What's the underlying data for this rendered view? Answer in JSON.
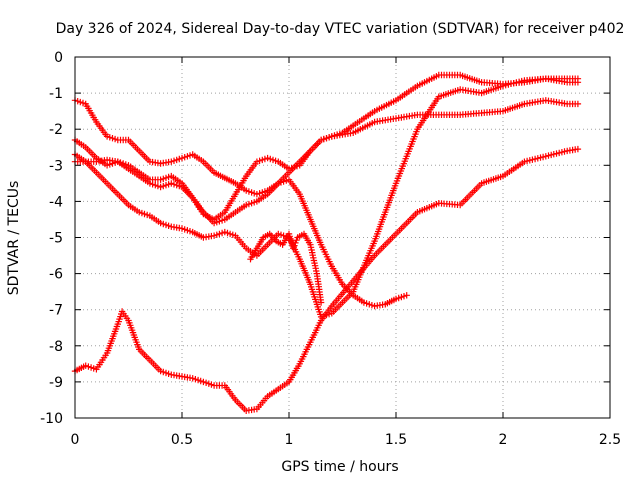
{
  "chart_data": {
    "type": "scatter",
    "title": "Day 326 of 2024, Sidereal Day-to-day VTEC variation (SDTVAR) for receiver p402",
    "xlabel": "GPS time / hours",
    "ylabel": "SDTVAR / TECUs",
    "xlim": [
      0,
      2.5
    ],
    "ylim": [
      -10,
      0
    ],
    "xticks": [
      0,
      0.5,
      1,
      1.5,
      2,
      2.5
    ],
    "xtick_labels": [
      "0",
      "0.5",
      "1",
      "1.5",
      "2",
      "2.5"
    ],
    "yticks": [
      0,
      -1,
      -2,
      -3,
      -4,
      -5,
      -6,
      -7,
      -8,
      -9,
      -10
    ],
    "ytick_labels": [
      "0",
      "-1",
      "-2",
      "-3",
      "-4",
      "-5",
      "-6",
      "-7",
      "-8",
      "-9",
      "-10"
    ],
    "grid": true,
    "marker": "+",
    "color": "#ff0000",
    "series": [
      {
        "name": "track-1",
        "x": [
          0,
          0.05,
          0.1,
          0.15,
          0.2,
          0.25,
          0.3,
          0.35,
          0.4,
          0.45,
          0.5,
          0.55,
          0.6,
          0.65,
          0.7,
          0.75,
          0.8,
          0.85,
          0.9,
          0.95,
          1.0,
          1.05,
          1.1,
          1.15,
          1.2,
          1.25,
          1.3,
          1.35,
          1.4,
          1.45,
          1.5,
          1.55
        ],
        "y": [
          -1.2,
          -1.3,
          -1.8,
          -2.2,
          -2.3,
          -2.3,
          -2.6,
          -2.9,
          -2.95,
          -2.9,
          -2.8,
          -2.7,
          -2.9,
          -3.2,
          -3.35,
          -3.5,
          -3.7,
          -3.8,
          -3.7,
          -3.5,
          -3.4,
          -3.8,
          -4.5,
          -5.2,
          -5.8,
          -6.3,
          -6.6,
          -6.8,
          -6.9,
          -6.85,
          -6.7,
          -6.6
        ]
      },
      {
        "name": "track-2",
        "x": [
          0,
          0.05,
          0.1,
          0.15,
          0.2,
          0.25,
          0.3,
          0.35,
          0.4,
          0.45,
          0.5,
          0.55,
          0.6,
          0.65,
          0.7,
          0.75,
          0.8,
          0.85,
          0.9,
          0.95,
          1.0,
          1.05,
          1.1,
          1.15,
          1.2,
          1.3,
          1.4,
          1.5,
          1.6,
          1.7,
          1.8,
          1.9,
          2.0,
          2.1,
          2.2,
          2.3,
          2.35
        ],
        "y": [
          -2.3,
          -2.5,
          -2.8,
          -3.0,
          -2.9,
          -3.1,
          -3.3,
          -3.5,
          -3.6,
          -3.5,
          -3.6,
          -3.9,
          -4.3,
          -4.6,
          -4.5,
          -4.3,
          -4.1,
          -4.0,
          -3.8,
          -3.5,
          -3.2,
          -2.9,
          -2.6,
          -2.3,
          -2.2,
          -2.1,
          -1.8,
          -1.7,
          -1.6,
          -1.6,
          -1.6,
          -1.55,
          -1.5,
          -1.3,
          -1.2,
          -1.3,
          -1.3
        ]
      },
      {
        "name": "track-3",
        "x": [
          0,
          0.05,
          0.1,
          0.15,
          0.2,
          0.25,
          0.3,
          0.35,
          0.4,
          0.45,
          0.5,
          0.55,
          0.6,
          0.65,
          0.7,
          0.75,
          0.8,
          0.85,
          0.9,
          0.95,
          1.0,
          1.05,
          1.1,
          1.15,
          1.2,
          1.25,
          1.3,
          1.35,
          1.4,
          1.5,
          1.6,
          1.7,
          1.8,
          1.9,
          2.0,
          2.1,
          2.2,
          2.3,
          2.35
        ],
        "y": [
          -2.9,
          -2.9,
          -2.9,
          -2.85,
          -2.9,
          -3.0,
          -3.2,
          -3.4,
          -3.4,
          -3.3,
          -3.5,
          -3.9,
          -4.35,
          -4.5,
          -4.3,
          -3.8,
          -3.3,
          -2.9,
          -2.8,
          -2.9,
          -3.1,
          -3.0,
          -2.6,
          -2.3,
          -2.2,
          -2.1,
          -1.9,
          -1.7,
          -1.5,
          -1.2,
          -0.8,
          -0.5,
          -0.5,
          -0.7,
          -0.75,
          -0.7,
          -0.6,
          -0.6,
          -0.6
        ]
      },
      {
        "name": "track-4",
        "x": [
          0,
          0.05,
          0.1,
          0.15,
          0.2,
          0.25,
          0.3,
          0.35,
          0.4,
          0.45,
          0.5,
          0.55,
          0.6,
          0.65,
          0.7,
          0.75,
          0.8,
          0.85,
          0.9,
          0.95,
          1.0,
          1.05,
          1.1,
          1.15,
          1.2,
          1.3,
          1.4,
          1.5,
          1.6,
          1.7,
          1.8,
          1.9,
          2.0,
          2.1,
          2.2,
          2.3,
          2.35
        ],
        "y": [
          -2.7,
          -2.9,
          -3.2,
          -3.5,
          -3.8,
          -4.1,
          -4.3,
          -4.4,
          -4.6,
          -4.7,
          -4.75,
          -4.85,
          -5.0,
          -4.95,
          -4.85,
          -4.95,
          -5.3,
          -5.5,
          -5.2,
          -4.9,
          -5.0,
          -5.6,
          -6.3,
          -7.2,
          -7.1,
          -6.5,
          -5.1,
          -3.5,
          -2.0,
          -1.1,
          -0.9,
          -1.0,
          -0.8,
          -0.65,
          -0.6,
          -0.7,
          -0.7
        ]
      },
      {
        "name": "track-5",
        "x": [
          0.82,
          0.85,
          0.88,
          0.91,
          0.94,
          0.97,
          1.0,
          1.02,
          1.04,
          1.07,
          1.1,
          1.13,
          1.15
        ],
        "y": [
          -5.6,
          -5.3,
          -5.0,
          -4.9,
          -5.1,
          -5.2,
          -4.9,
          -5.3,
          -5.0,
          -4.9,
          -5.2,
          -6.0,
          -6.8
        ]
      },
      {
        "name": "track-6",
        "x": [
          0,
          0.05,
          0.1,
          0.15,
          0.2,
          0.22,
          0.25,
          0.3,
          0.35,
          0.4,
          0.45,
          0.5,
          0.55,
          0.6,
          0.65,
          0.7,
          0.75,
          0.8,
          0.85,
          0.9,
          0.95,
          1.0,
          1.05,
          1.1,
          1.15,
          1.2,
          1.3,
          1.4,
          1.5,
          1.6,
          1.7,
          1.8,
          1.9,
          2.0,
          2.1,
          2.2,
          2.3,
          2.35
        ],
        "y": [
          -8.7,
          -8.55,
          -8.65,
          -8.2,
          -7.4,
          -7.05,
          -7.3,
          -8.1,
          -8.4,
          -8.7,
          -8.8,
          -8.85,
          -8.9,
          -9.0,
          -9.1,
          -9.1,
          -9.5,
          -9.8,
          -9.75,
          -9.4,
          -9.2,
          -9.0,
          -8.5,
          -7.9,
          -7.3,
          -6.9,
          -6.2,
          -5.5,
          -4.9,
          -4.3,
          -4.05,
          -4.1,
          -3.5,
          -3.3,
          -2.9,
          -2.75,
          -2.6,
          -2.55
        ]
      }
    ]
  }
}
